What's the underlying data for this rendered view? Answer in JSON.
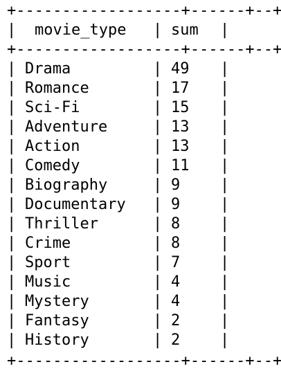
{
  "table": {
    "border": "+------------------+------+--+",
    "headers": [
      "movie_type",
      "sum"
    ],
    "rows": [
      {
        "movie_type": "Drama",
        "sum": "49"
      },
      {
        "movie_type": "Romance",
        "sum": "17"
      },
      {
        "movie_type": "Sci-Fi",
        "sum": "15"
      },
      {
        "movie_type": "Adventure",
        "sum": "13"
      },
      {
        "movie_type": "Action",
        "sum": "13"
      },
      {
        "movie_type": "Comedy",
        "sum": "11"
      },
      {
        "movie_type": "Biography",
        "sum": "9"
      },
      {
        "movie_type": "Documentary",
        "sum": "9"
      },
      {
        "movie_type": "Thriller",
        "sum": "8"
      },
      {
        "movie_type": "Crime",
        "sum": "8"
      },
      {
        "movie_type": "Sport",
        "sum": "7"
      },
      {
        "movie_type": "Music",
        "sum": "4"
      },
      {
        "movie_type": "Mystery",
        "sum": "4"
      },
      {
        "movie_type": "Fantasy",
        "sum": "2"
      },
      {
        "movie_type": "History",
        "sum": "2"
      }
    ]
  }
}
